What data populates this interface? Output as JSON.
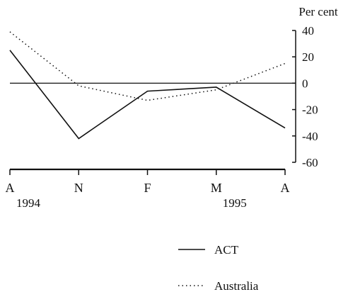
{
  "chart_data": {
    "type": "line",
    "title": "",
    "xlabel": "",
    "ylabel": "Per cent",
    "ylim": [
      -60,
      40
    ],
    "yticks": [
      "40",
      "20",
      "0",
      "-20",
      "-40",
      "-60"
    ],
    "ytick_values": [
      40,
      20,
      0,
      -20,
      -40,
      -60
    ],
    "categories": [
      "A",
      "N",
      "F",
      "M",
      "A"
    ],
    "year_labels": [
      "1994",
      "1995"
    ],
    "series": [
      {
        "name": "ACT",
        "style": "solid",
        "values": [
          25,
          -42,
          -6,
          -3,
          -34
        ]
      },
      {
        "name": "Australia",
        "style": "dotted",
        "values": [
          39,
          -2,
          -13,
          -5,
          15
        ]
      }
    ],
    "legend_position": "bottom-right",
    "grid": false
  }
}
